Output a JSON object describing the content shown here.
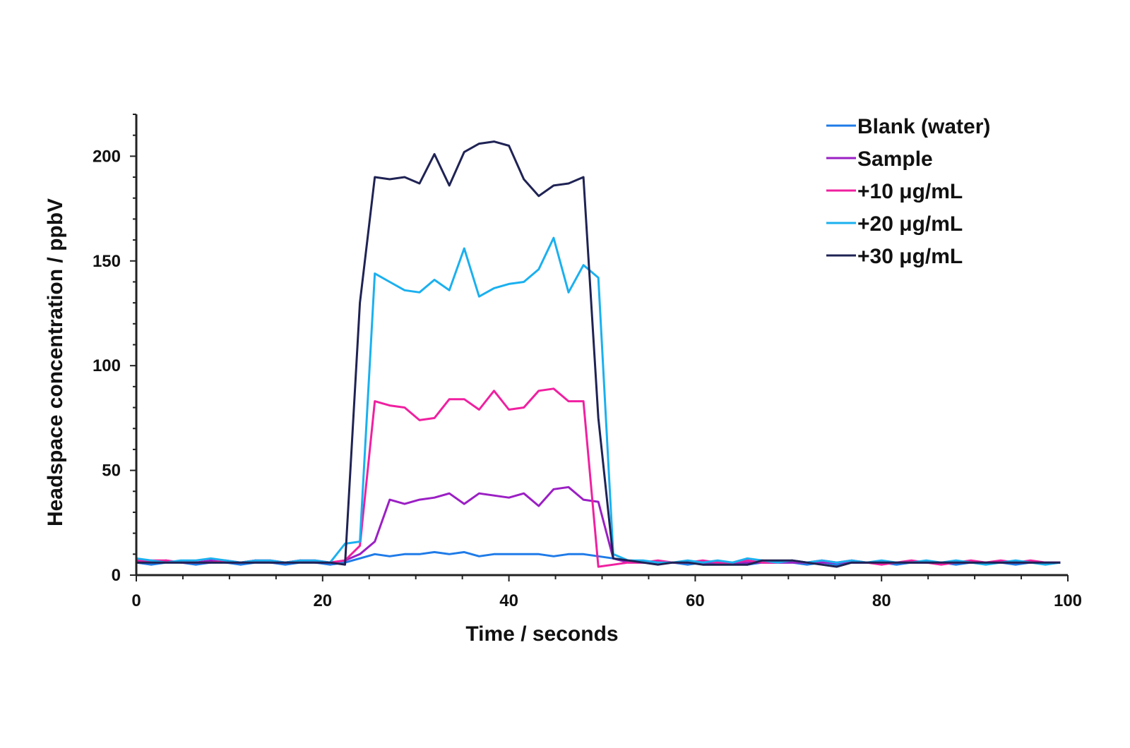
{
  "chart_data": {
    "type": "line",
    "title": "",
    "xlabel": "Time / seconds",
    "ylabel": "Headspace concentration / ppbV",
    "xlim": [
      0,
      100
    ],
    "ylim": [
      0,
      220
    ],
    "x_ticks": [
      0,
      20,
      40,
      60,
      80,
      100
    ],
    "y_ticks": [
      0,
      50,
      100,
      150,
      200
    ],
    "x_tick_labels": [
      "0",
      "20",
      "40",
      "60",
      "80",
      "100"
    ],
    "y_tick_labels": [
      "0",
      "50",
      "100",
      "150",
      "200"
    ],
    "grid": false,
    "legend_position": "top-right",
    "x": [
      0,
      1.6,
      3.2,
      4.8,
      6.4,
      8,
      9.6,
      11.2,
      12.8,
      14.4,
      16,
      17.6,
      19.2,
      20.8,
      22.4,
      24,
      25.6,
      27.2,
      28.8,
      30.4,
      32,
      33.6,
      35.2,
      36.8,
      38.4,
      40,
      41.6,
      43.2,
      44.8,
      46.4,
      48,
      49.6,
      51.2,
      52.8,
      54.4,
      56,
      57.6,
      59.2,
      60.8,
      62.4,
      64,
      65.6,
      67.2,
      68.8,
      70.4,
      72,
      73.6,
      75.2,
      76.8,
      78.4,
      80,
      81.6,
      83.2,
      84.8,
      86.4,
      88,
      89.6,
      91.2,
      92.8,
      94.4,
      96,
      97.6,
      99.2
    ],
    "series": [
      {
        "name": "Blank (water)",
        "color": "#1f7be8",
        "values": [
          6,
          5,
          6,
          6,
          5,
          6,
          6,
          5,
          6,
          6,
          5,
          6,
          6,
          5,
          6,
          8,
          10,
          9,
          10,
          10,
          11,
          10,
          11,
          9,
          10,
          10,
          10,
          10,
          9,
          10,
          10,
          9,
          8,
          7,
          6,
          6,
          6,
          5,
          6,
          6,
          6,
          5,
          6,
          6,
          6,
          5,
          6,
          5,
          6,
          6,
          6,
          5,
          6,
          6,
          6,
          5,
          6,
          6,
          6,
          5,
          6,
          6,
          6
        ]
      },
      {
        "name": "Sample",
        "color": "#9b1fc4",
        "values": [
          7,
          6,
          7,
          6,
          6,
          7,
          6,
          6,
          7,
          6,
          6,
          7,
          6,
          6,
          7,
          10,
          16,
          36,
          34,
          36,
          37,
          39,
          34,
          39,
          38,
          37,
          39,
          33,
          41,
          42,
          36,
          35,
          8,
          6,
          6,
          6,
          6,
          6,
          6,
          6,
          6,
          6,
          6,
          6,
          6,
          6,
          6,
          6,
          6,
          6,
          6,
          6,
          6,
          6,
          6,
          6,
          6,
          6,
          6,
          6,
          6,
          6,
          6
        ]
      },
      {
        "name": "+10 μg/mL",
        "color": "#f020a0",
        "values": [
          7,
          7,
          7,
          6,
          6,
          6,
          7,
          6,
          7,
          7,
          6,
          7,
          7,
          6,
          7,
          14,
          83,
          81,
          80,
          74,
          75,
          84,
          84,
          79,
          88,
          79,
          80,
          88,
          89,
          83,
          83,
          4,
          5,
          6,
          6,
          7,
          6,
          6,
          7,
          6,
          6,
          7,
          6,
          6,
          7,
          6,
          7,
          6,
          7,
          6,
          5,
          6,
          7,
          6,
          5,
          6,
          7,
          6,
          7,
          6,
          7,
          6,
          6
        ]
      },
      {
        "name": "+20 μg/mL",
        "color": "#1ab0ef",
        "values": [
          8,
          7,
          6,
          7,
          7,
          8,
          7,
          6,
          7,
          7,
          6,
          7,
          7,
          6,
          15,
          16,
          144,
          140,
          136,
          135,
          141,
          136,
          156,
          133,
          137,
          139,
          140,
          146,
          161,
          135,
          148,
          142,
          10,
          7,
          7,
          6,
          6,
          7,
          6,
          7,
          6,
          8,
          7,
          6,
          7,
          6,
          7,
          6,
          7,
          6,
          7,
          6,
          6,
          7,
          6,
          7,
          6,
          5,
          6,
          7,
          6,
          5,
          6
        ]
      },
      {
        "name": "+30 μg/mL",
        "color": "#1f2354",
        "values": [
          6,
          6,
          6,
          6,
          6,
          6,
          6,
          6,
          6,
          6,
          6,
          6,
          6,
          6,
          5,
          130,
          190,
          189,
          190,
          187,
          201,
          186,
          202,
          206,
          207,
          205,
          189,
          181,
          186,
          187,
          190,
          75,
          8,
          7,
          6,
          5,
          6,
          6,
          5,
          5,
          5,
          5,
          7,
          7,
          7,
          6,
          5,
          4,
          6,
          6,
          6,
          6,
          6,
          6,
          6,
          6,
          6,
          6,
          6,
          6,
          6,
          6,
          6
        ]
      }
    ]
  }
}
